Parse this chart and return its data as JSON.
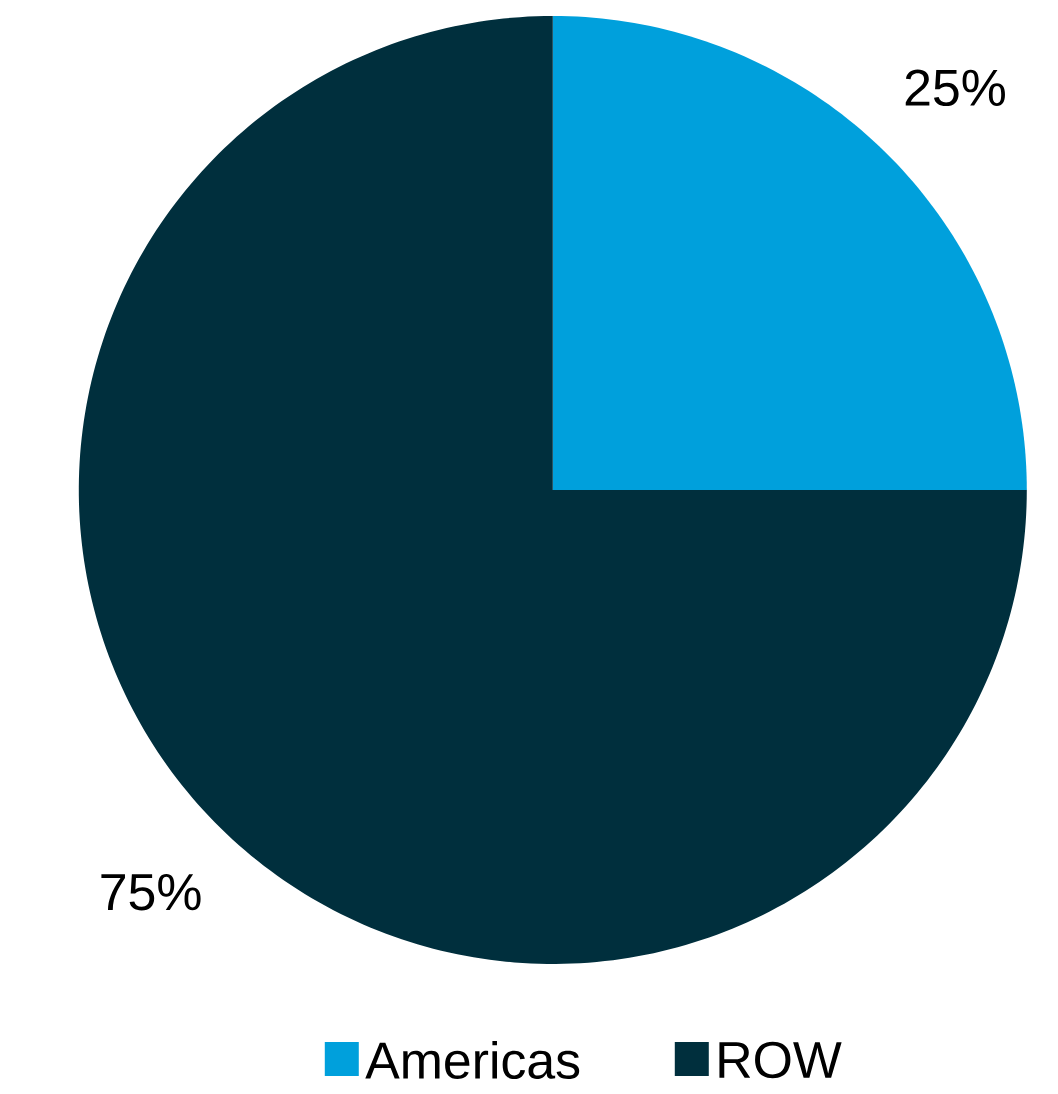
{
  "chart_data": {
    "type": "pie",
    "categories": [
      "Americas",
      "ROW"
    ],
    "values": [
      25,
      75
    ],
    "colors": [
      "#00a0dc",
      "#002f3d"
    ],
    "value_labels": [
      "25%",
      "75%"
    ],
    "legend": "bottom"
  }
}
